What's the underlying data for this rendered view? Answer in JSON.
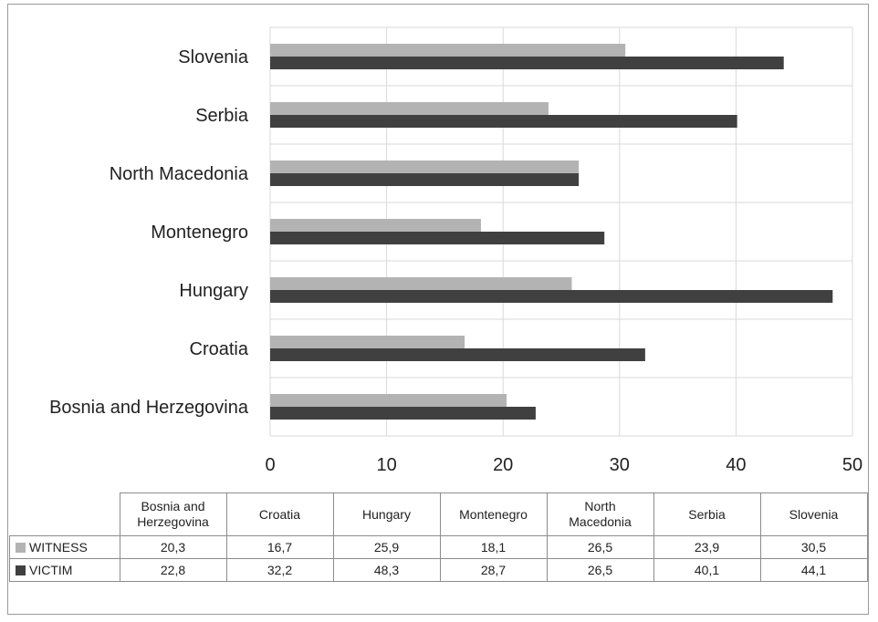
{
  "chart_data": {
    "type": "bar",
    "orientation": "horizontal",
    "categories": [
      "Bosnia and Herzegovina",
      "Croatia",
      "Hungary",
      "Montenegro",
      "North Macedonia",
      "Serbia",
      "Slovenia"
    ],
    "table_headers": [
      [
        "Bosnia and",
        "Herzegovina"
      ],
      [
        "Croatia"
      ],
      [
        "Hungary"
      ],
      [
        "Montenegro"
      ],
      [
        "North",
        "Macedonia"
      ],
      [
        "Serbia"
      ],
      [
        "Slovenia"
      ]
    ],
    "series": [
      {
        "name": "WITNESS",
        "color": "#b3b3b3",
        "values": [
          20.3,
          16.7,
          25.9,
          18.1,
          26.5,
          23.9,
          30.5
        ],
        "display_values": [
          "20,3",
          "16,7",
          "25,9",
          "18,1",
          "26,5",
          "23,9",
          "30,5"
        ]
      },
      {
        "name": "VICTIM",
        "color": "#404040",
        "values": [
          22.8,
          32.2,
          48.3,
          28.7,
          26.5,
          40.1,
          44.1
        ],
        "display_values": [
          "22,8",
          "32,2",
          "48,3",
          "28,7",
          "26,5",
          "40,1",
          "44,1"
        ]
      }
    ],
    "xlim": [
      0,
      50
    ],
    "xticks": [
      0,
      10,
      20,
      30,
      40,
      50
    ],
    "grid": true,
    "legend": "data-table-below"
  }
}
